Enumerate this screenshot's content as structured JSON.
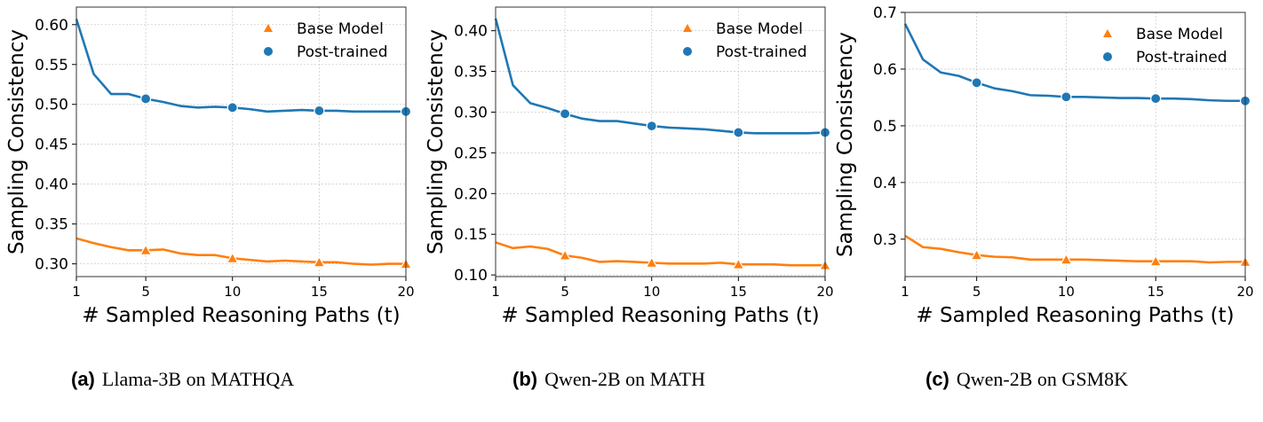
{
  "chart_data": [
    {
      "type": "line",
      "caption_tag": "(a)",
      "caption": "Llama-3B on MATHQA",
      "xlabel": "# Sampled Reasoning Paths (t)",
      "ylabel": "Sampling Consistency",
      "xlim": [
        1,
        20
      ],
      "ylim": [
        0.284,
        0.622
      ],
      "xticks": [
        1,
        5,
        10,
        15,
        20
      ],
      "yticks": [
        0.3,
        0.35,
        0.4,
        0.45,
        0.5,
        0.55,
        0.6
      ],
      "ytick_labels": [
        "0.30",
        "0.35",
        "0.40",
        "0.45",
        "0.50",
        "0.55",
        "0.60"
      ],
      "grid": true,
      "legend": "top-right",
      "x": [
        1,
        2,
        3,
        4,
        5,
        6,
        7,
        8,
        9,
        10,
        11,
        12,
        13,
        14,
        15,
        16,
        17,
        18,
        19,
        20
      ],
      "series": [
        {
          "name": "Base Model",
          "color": "#ff7f0e",
          "marker": "triangle",
          "values": [
            0.332,
            0.326,
            0.321,
            0.317,
            0.317,
            0.318,
            0.313,
            0.311,
            0.311,
            0.307,
            0.305,
            0.303,
            0.304,
            0.303,
            0.302,
            0.302,
            0.3,
            0.299,
            0.3,
            0.3
          ]
        },
        {
          "name": "Post-trained",
          "color": "#1f77b4",
          "marker": "circle",
          "values": [
            0.607,
            0.538,
            0.513,
            0.513,
            0.507,
            0.503,
            0.498,
            0.496,
            0.497,
            0.496,
            0.494,
            0.491,
            0.492,
            0.493,
            0.492,
            0.492,
            0.491,
            0.491,
            0.491,
            0.491
          ]
        }
      ]
    },
    {
      "type": "line",
      "caption_tag": "(b)",
      "caption": "Qwen-2B on MATH",
      "xlabel": "# Sampled Reasoning Paths (t)",
      "ylabel": "Sampling Consistency",
      "xlim": [
        1,
        20
      ],
      "ylim": [
        0.098,
        0.429
      ],
      "xticks": [
        1,
        5,
        10,
        15,
        20
      ],
      "yticks": [
        0.1,
        0.15,
        0.2,
        0.25,
        0.3,
        0.35,
        0.4
      ],
      "ytick_labels": [
        "0.10",
        "0.15",
        "0.20",
        "0.25",
        "0.30",
        "0.35",
        "0.40"
      ],
      "grid": true,
      "legend": "top-right",
      "x": [
        1,
        2,
        3,
        4,
        5,
        6,
        7,
        8,
        9,
        10,
        11,
        12,
        13,
        14,
        15,
        16,
        17,
        18,
        19,
        20
      ],
      "series": [
        {
          "name": "Base Model",
          "color": "#ff7f0e",
          "marker": "triangle",
          "values": [
            0.14,
            0.133,
            0.135,
            0.132,
            0.124,
            0.121,
            0.116,
            0.117,
            0.116,
            0.115,
            0.114,
            0.114,
            0.114,
            0.115,
            0.113,
            0.113,
            0.113,
            0.112,
            0.112,
            0.112
          ]
        },
        {
          "name": "Post-trained",
          "color": "#1f77b4",
          "marker": "circle",
          "values": [
            0.415,
            0.333,
            0.311,
            0.305,
            0.298,
            0.292,
            0.289,
            0.289,
            0.286,
            0.283,
            0.281,
            0.28,
            0.279,
            0.277,
            0.275,
            0.274,
            0.274,
            0.274,
            0.274,
            0.275
          ]
        }
      ]
    },
    {
      "type": "line",
      "caption_tag": "(c)",
      "caption": "Qwen-2B on GSM8K",
      "xlabel": "# Sampled Reasoning Paths (t)",
      "ylabel": "Sampling Consistency",
      "xlim": [
        1,
        20
      ],
      "ylim": [
        0.234,
        0.7
      ],
      "xticks": [
        1,
        5,
        10,
        15,
        20
      ],
      "yticks": [
        0.3,
        0.4,
        0.5,
        0.6,
        0.7
      ],
      "ytick_labels": [
        "0.3",
        "0.4",
        "0.5",
        "0.6",
        "0.7"
      ],
      "grid": true,
      "legend": "top-right",
      "x": [
        1,
        2,
        3,
        4,
        5,
        6,
        7,
        8,
        9,
        10,
        11,
        12,
        13,
        14,
        15,
        16,
        17,
        18,
        19,
        20
      ],
      "series": [
        {
          "name": "Base Model",
          "color": "#ff7f0e",
          "marker": "triangle",
          "values": [
            0.306,
            0.286,
            0.283,
            0.277,
            0.272,
            0.269,
            0.268,
            0.264,
            0.264,
            0.264,
            0.264,
            0.263,
            0.262,
            0.261,
            0.261,
            0.261,
            0.261,
            0.259,
            0.26,
            0.26
          ]
        },
        {
          "name": "Post-trained",
          "color": "#1f77b4",
          "marker": "circle",
          "values": [
            0.68,
            0.617,
            0.594,
            0.588,
            0.576,
            0.566,
            0.561,
            0.554,
            0.553,
            0.551,
            0.551,
            0.55,
            0.549,
            0.549,
            0.548,
            0.548,
            0.547,
            0.545,
            0.544,
            0.544
          ]
        }
      ]
    }
  ]
}
